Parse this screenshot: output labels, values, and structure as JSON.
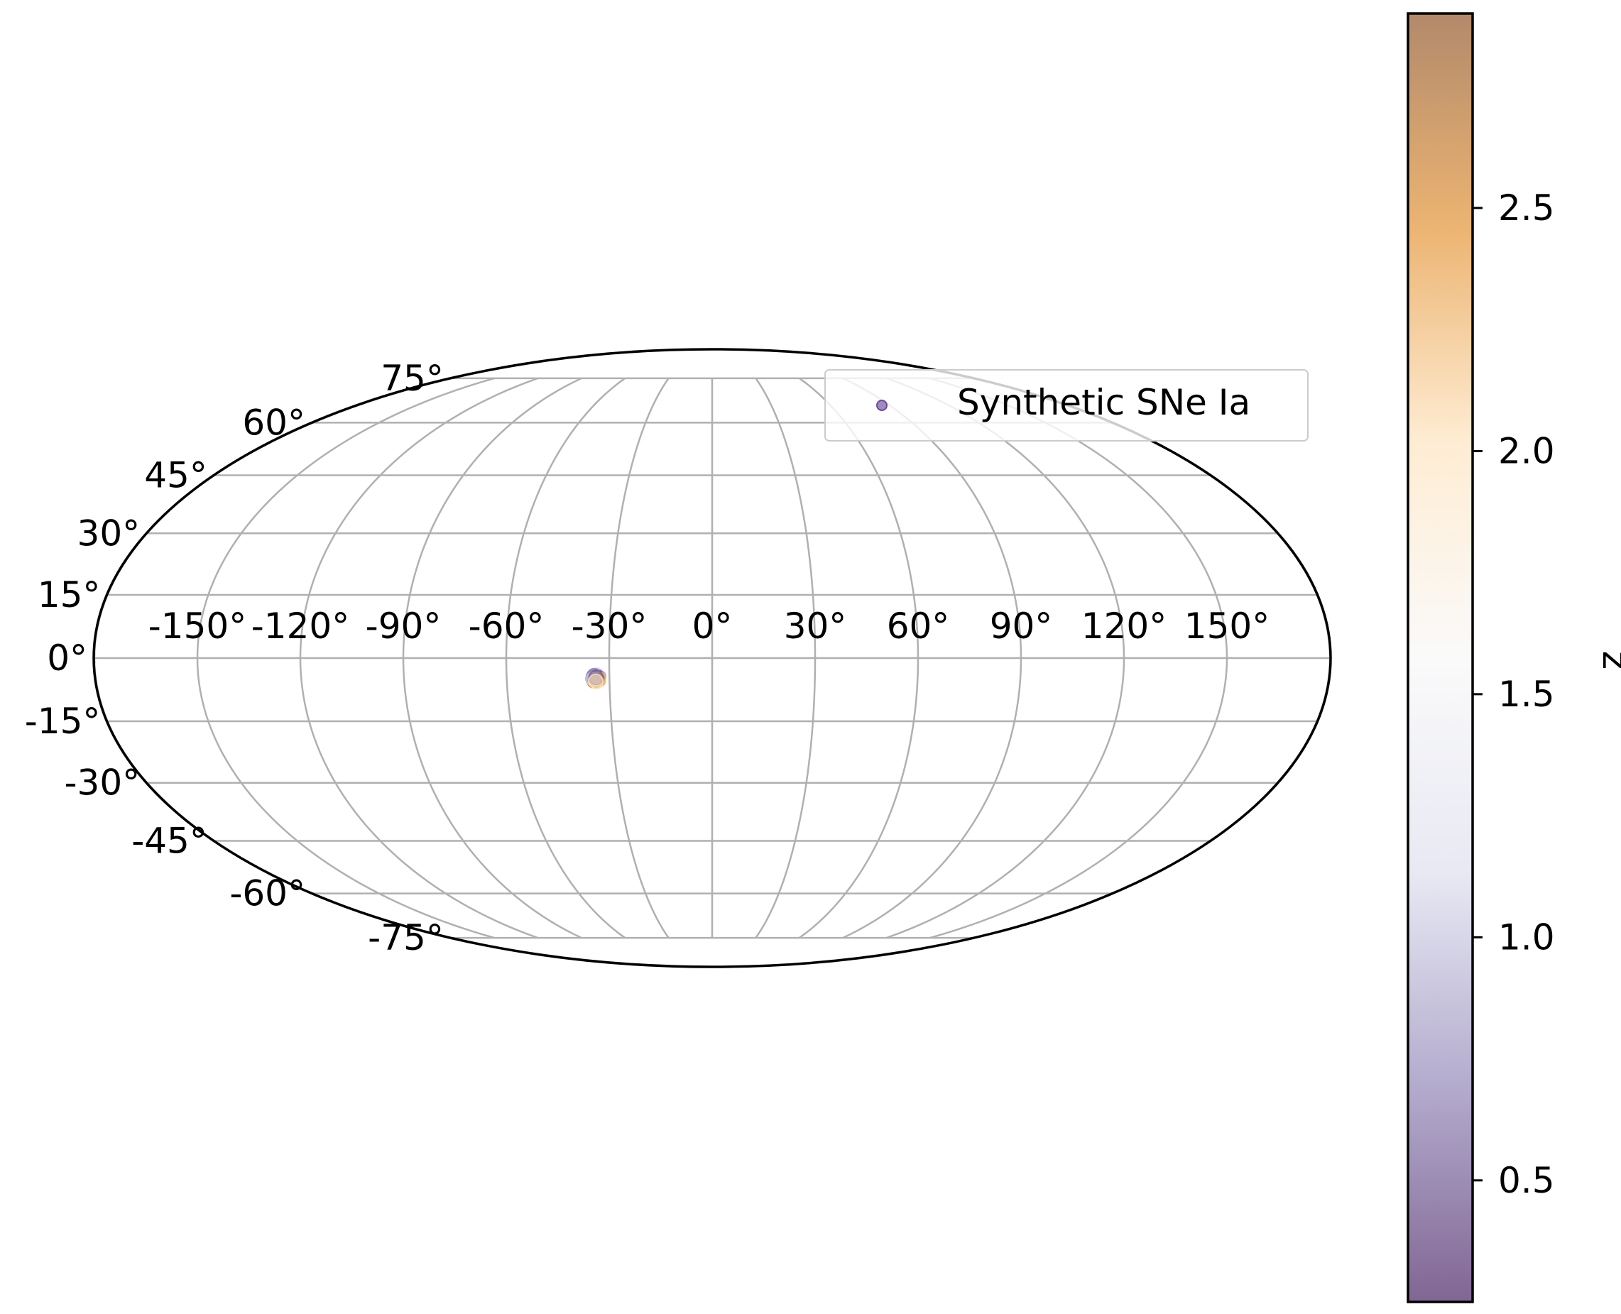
{
  "chart_data": {
    "type": "scatter",
    "projection": "mollweide",
    "title": "",
    "xlabel": "",
    "ylabel": "",
    "grid": true,
    "legend_placement": "upper-right",
    "x_tick_labels": [
      "-150°",
      "-120°",
      "-90°",
      "-60°",
      "-30°",
      "0°",
      "30°",
      "60°",
      "90°",
      "120°",
      "150°"
    ],
    "x_tick_values": [
      -150,
      -120,
      -90,
      -60,
      -30,
      0,
      30,
      60,
      90,
      120,
      150
    ],
    "y_tick_labels": [
      "-75°",
      "-60°",
      "-45°",
      "-30°",
      "-15°",
      "0°",
      "15°",
      "30°",
      "45°",
      "60°",
      "75°"
    ],
    "y_tick_values": [
      -75,
      -60,
      -45,
      -30,
      -15,
      0,
      15,
      30,
      45,
      60,
      75
    ],
    "xlim": [
      -180,
      180
    ],
    "ylim": [
      -90,
      90
    ],
    "series": [
      {
        "name": "Synthetic SNe Ia",
        "x": [
          -34.2,
          -33.4,
          -34.8,
          -33.9,
          -33.1,
          -34.5,
          -33.6,
          -34.0,
          -33.3,
          -34.6,
          -33.8,
          -34.3,
          -33.5,
          -34.1,
          -33.7,
          -34.4,
          -33.2,
          -34.7,
          -33.9,
          -34.0
        ],
        "y": [
          -4.2,
          -4.6,
          -4.9,
          -5.1,
          -4.4,
          -5.4,
          -4.0,
          -4.7,
          -5.3,
          -4.3,
          -5.6,
          -4.8,
          -4.5,
          -5.0,
          -5.2,
          -4.1,
          -4.9,
          -5.0,
          -4.6,
          -5.5
        ],
        "z": [
          0.4,
          2.5,
          0.6,
          2.1,
          0.9,
          2.6,
          1.2,
          0.5,
          2.3,
          0.7,
          1.9,
          2.7,
          0.5,
          1.6,
          2.4,
          0.8,
          2.2,
          1.1,
          0.6,
          2.0
        ]
      }
    ],
    "colorbar": {
      "label": "z",
      "range": [
        0.25,
        2.9
      ],
      "ticks": [
        0.5,
        1.0,
        1.5,
        2.0,
        2.5
      ],
      "tick_labels": [
        "0.5",
        "1.0",
        "1.5",
        "2.0",
        "2.5"
      ],
      "colormap": "PuOr_r",
      "alpha": 0.6,
      "stops": [
        "#2d004b",
        "#8073ac",
        "#d8daeb",
        "#f7f7f7",
        "#fee0b6",
        "#e08214",
        "#7f3b08"
      ]
    },
    "colors": {
      "frame": "#000000",
      "grid": "#b0b0b0",
      "legend_marker": "#8a6bb3"
    }
  }
}
